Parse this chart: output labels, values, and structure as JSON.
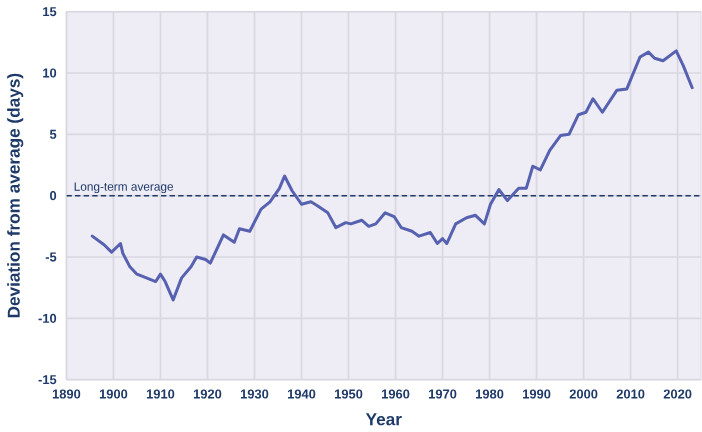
{
  "chart_data": {
    "type": "line",
    "xlabel": "Year",
    "ylabel": "Deviation from average (days)",
    "xlim": [
      1890,
      2025
    ],
    "ylim": [
      -15,
      15
    ],
    "xticks": [
      1890,
      1900,
      1910,
      1920,
      1930,
      1940,
      1950,
      1960,
      1970,
      1980,
      1990,
      2000,
      2010,
      2020
    ],
    "yticks": [
      -15,
      -10,
      -5,
      0,
      5,
      10,
      15
    ],
    "grid": true,
    "marker": "none",
    "line_style": "solid",
    "ref_lines": [
      {
        "axis": "y",
        "value": 0,
        "label": "Long-term average",
        "color": "#1f3a68",
        "line_style": "dashed"
      }
    ],
    "series": [
      {
        "color": "#5661b0",
        "x": [
          1895.5,
          1898,
          1899.6,
          1901.5,
          1902,
          1903.5,
          1905,
          1907,
          1909,
          1910,
          1911,
          1912.7,
          1914.5,
          1916.5,
          1917.7,
          1919.6,
          1920.6,
          1923.4,
          1925.7,
          1926.8,
          1929,
          1931.4,
          1933.3,
          1935.3,
          1936.4,
          1938,
          1940,
          1942,
          1943.3,
          1945.6,
          1947.3,
          1949.4,
          1950.5,
          1952.8,
          1954.3,
          1955.8,
          1957.8,
          1959.7,
          1961.2,
          1963.5,
          1965,
          1967.4,
          1968.9,
          1970,
          1970.9,
          1972.8,
          1975.1,
          1977,
          1978.9,
          1980.2,
          1982,
          1983.8,
          1986.2,
          1987.8,
          1989.2,
          1990.8,
          1992.8,
          1995.1,
          1996.9,
          1998.9,
          2000.5,
          2002,
          2004,
          2007.1,
          2009.2,
          2012,
          2013.8,
          2015.1,
          2016.9,
          2019.7,
          2021.2,
          2023.1
        ],
        "values": [
          -3.3,
          -4.0,
          -4.6,
          -3.9,
          -4.7,
          -5.8,
          -6.4,
          -6.7,
          -7.0,
          -6.4,
          -7.0,
          -8.5,
          -6.7,
          -5.8,
          -5.0,
          -5.2,
          -5.5,
          -3.2,
          -3.8,
          -2.7,
          -2.9,
          -1.1,
          -0.5,
          0.6,
          1.6,
          0.4,
          -0.7,
          -0.5,
          -0.8,
          -1.4,
          -2.6,
          -2.2,
          -2.3,
          -2.0,
          -2.5,
          -2.3,
          -1.4,
          -1.7,
          -2.6,
          -2.9,
          -3.3,
          -3.0,
          -3.9,
          -3.5,
          -3.9,
          -2.3,
          -1.8,
          -1.6,
          -2.3,
          -0.7,
          0.5,
          -0.4,
          0.6,
          0.6,
          2.4,
          2.1,
          3.7,
          4.9,
          5.0,
          6.6,
          6.8,
          7.9,
          6.8,
          8.6,
          8.7,
          11.3,
          11.7,
          11.2,
          11.0,
          11.8,
          10.6,
          8.8
        ]
      }
    ]
  }
}
